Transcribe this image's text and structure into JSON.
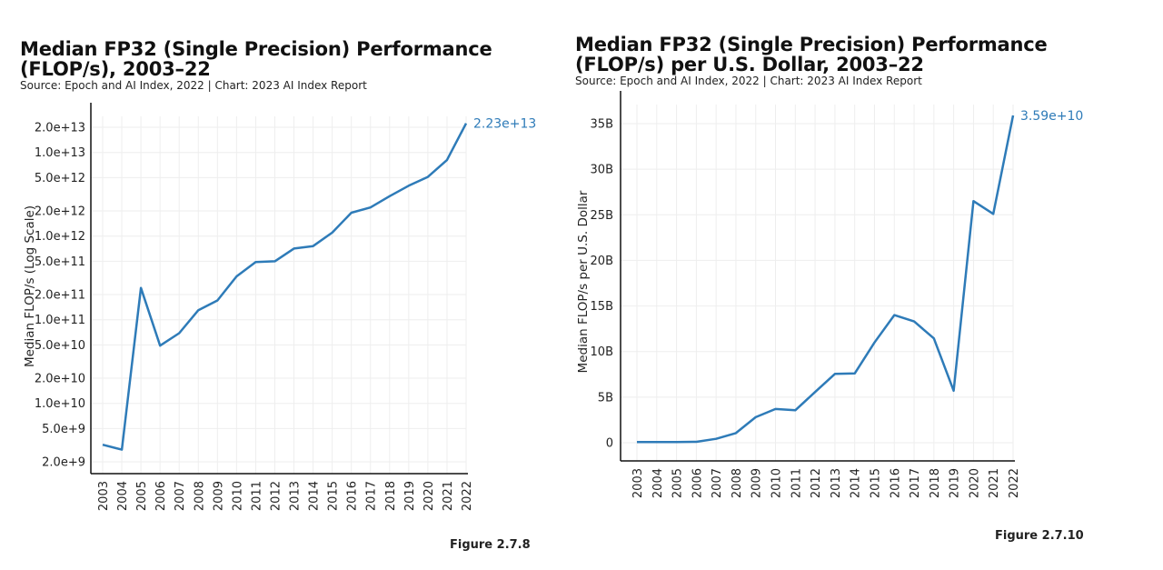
{
  "accent": "#2e7bb8",
  "chart_data": [
    {
      "type": "line",
      "title": "Median FP32 (Single Precision) Performance (FLOP/s), 2003–22",
      "source": "Source: Epoch and AI Index, 2022 | Chart: 2023 AI Index Report",
      "figure": "Figure 2.7.8",
      "ylabel": "Median FLOP/s (Log Scale)",
      "xlabel": "",
      "yscale": "log",
      "ylim": [
        1500000000.0,
        30000000000000.0
      ],
      "grid": true,
      "x": [
        "2003",
        "2004",
        "2005",
        "2006",
        "2007",
        "2008",
        "2009",
        "2010",
        "2011",
        "2012",
        "2013",
        "2014",
        "2015",
        "2016",
        "2017",
        "2018",
        "2019",
        "2020",
        "2021",
        "2022"
      ],
      "values": [
        3200000000.0,
        2800000000.0,
        240000000000.0,
        49000000000.0,
        69000000000.0,
        130000000000.0,
        170000000000.0,
        330000000000.0,
        490000000000.0,
        500000000000.0,
        710000000000.0,
        760000000000.0,
        1100000000000.0,
        1900000000000.0,
        2200000000000.0,
        3000000000000.0,
        4000000000000.0,
        5100000000000.0,
        8100000000000.0,
        22300000000000.0
      ],
      "yticks": [
        2000000000.0,
        5000000000.0,
        10000000000.0,
        20000000000.0,
        50000000000.0,
        100000000000.0,
        200000000000.0,
        500000000000.0,
        1000000000000.0,
        2000000000000.0,
        5000000000000.0,
        10000000000000.0,
        20000000000000.0
      ],
      "ytick_labels": [
        "2.0e+9",
        "5.0e+9",
        "1.0e+10",
        "2.0e+10",
        "5.0e+10",
        "1.0e+11",
        "2.0e+11",
        "5.0e+11",
        "1.0e+12",
        "2.0e+12",
        "5.0e+12",
        "1.0e+13",
        "2.0e+13"
      ],
      "end_label": "2.23e+13"
    },
    {
      "type": "line",
      "title": "Median FP32 (Single Precision) Performance (FLOP/s) per U.S. Dollar, 2003–22",
      "source": "Source: Epoch and AI Index, 2022 | Chart: 2023 AI Index Report",
      "figure": "Figure 2.7.10",
      "ylabel": "Median FLOP/s per U.S. Dollar",
      "xlabel": "",
      "yscale": "linear",
      "ylim": [
        -2300000000.0,
        37000000000.0
      ],
      "grid": true,
      "x": [
        "2003",
        "2004",
        "2005",
        "2006",
        "2007",
        "2008",
        "2009",
        "2010",
        "2011",
        "2012",
        "2013",
        "2014",
        "2015",
        "2016",
        "2017",
        "2018",
        "2019",
        "2020",
        "2021",
        "2022"
      ],
      "values": [
        70000000.0,
        70000000.0,
        80000000.0,
        100000000.0,
        430000000.0,
        1060000000.0,
        2800000000.0,
        3700000000.0,
        3560000000.0,
        5560000000.0,
        7550000000.0,
        7600000000.0,
        11000000000.0,
        14000000000.0,
        13300000000.0,
        11450000000.0,
        5700000000.0,
        26500000000.0,
        25100000000.0,
        35900000000.0
      ],
      "yticks": [
        0,
        5000000000.0,
        10000000000.0,
        15000000000.0,
        20000000000.0,
        25000000000.0,
        30000000000.0,
        35000000000.0
      ],
      "ytick_labels": [
        "0",
        "5B",
        "10B",
        "15B",
        "20B",
        "25B",
        "30B",
        "35B"
      ],
      "end_label": "3.59e+10"
    }
  ]
}
